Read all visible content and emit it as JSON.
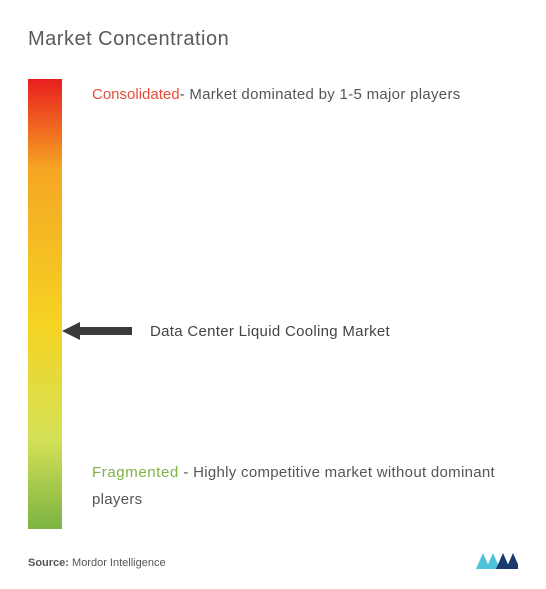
{
  "title": "Market Concentration",
  "gradient": {
    "top_color": "#e81e1e",
    "mid1_color": "#f5a623",
    "mid2_color": "#f5d423",
    "mid3_color": "#d4e157",
    "bottom_color": "#7cb342",
    "stops": [
      0,
      20,
      55,
      80,
      100
    ]
  },
  "consolidated": {
    "heading": "Consolidated",
    "desc": "- Market dominated by 1-5 major players",
    "heading_color": "#e74c3c"
  },
  "fragmented": {
    "heading": "Fragmented",
    "desc": " - Highly competitive market without dominant players",
    "heading_color": "#7cb342"
  },
  "marker": {
    "label": "Data Center Liquid Cooling Market",
    "position_percent": 56,
    "arrow_color": "#3a3a3a"
  },
  "source": {
    "prefix": "Source:",
    "name": " Mordor Intelligence"
  },
  "logo": {
    "color1": "#4fc3d9",
    "color2": "#1a3a6e"
  },
  "text_color": "#555555",
  "title_color": "#5a5a5a",
  "title_fontsize": 20,
  "body_fontsize": 15
}
